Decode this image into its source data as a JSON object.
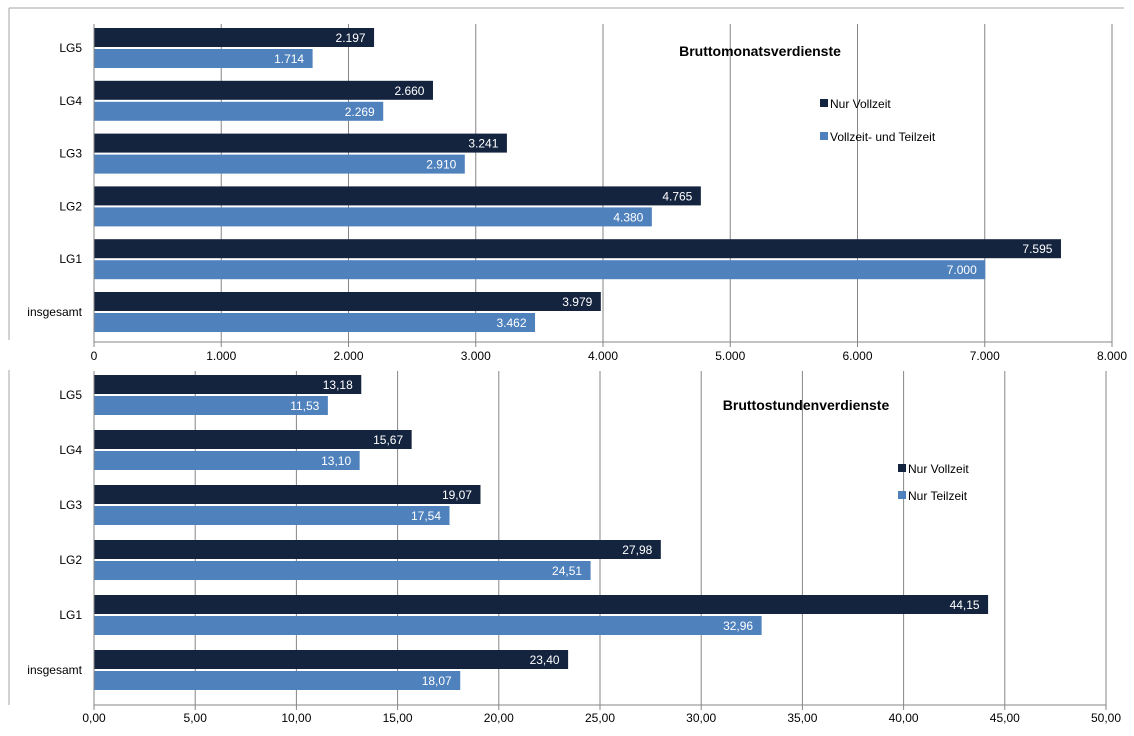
{
  "colors": {
    "vollzeit": "#14243f",
    "zweite": "#4f81bd",
    "grid": "#868686",
    "frame": "#a6a6a6",
    "text": "#000000",
    "label_on_bar": "#ffffff"
  },
  "chart_data": [
    {
      "type": "bar",
      "orientation": "horizontal",
      "title": "Bruttomonatsverdienste",
      "categories": [
        "LG5",
        "LG4",
        "LG3",
        "LG2",
        "LG1",
        "insgesamt"
      ],
      "series": [
        {
          "name": "Nur Vollzeit",
          "values": [
            2197,
            2660,
            3241,
            4765,
            7595,
            3979
          ],
          "labels": [
            "2.197",
            "2.660",
            "3.241",
            "4.765",
            "7.595",
            "3.979"
          ]
        },
        {
          "name": "Vollzeit- und Teilzeit",
          "values": [
            1714,
            2269,
            2910,
            4380,
            7000,
            3462
          ],
          "labels": [
            "1.714",
            "2.269",
            "2.910",
            "4.380",
            "7.000",
            "3.462"
          ]
        }
      ],
      "xlim": [
        0,
        8000
      ],
      "xticks": [
        0,
        1000,
        2000,
        3000,
        4000,
        5000,
        6000,
        7000,
        8000
      ],
      "xtick_labels": [
        "0",
        "1.000",
        "2.000",
        "3.000",
        "4.000",
        "5.000",
        "6.000",
        "7.000",
        "8.000"
      ],
      "grid": true,
      "legend_position": "right"
    },
    {
      "type": "bar",
      "orientation": "horizontal",
      "title": "Bruttostundenverdienste",
      "categories": [
        "LG5",
        "LG4",
        "LG3",
        "LG2",
        "LG1",
        "insgesamt"
      ],
      "series": [
        {
          "name": "Nur Vollzeit",
          "values": [
            13.18,
            15.67,
            19.07,
            27.98,
            44.15,
            23.4
          ],
          "labels": [
            "13,18",
            "15,67",
            "19,07",
            "27,98",
            "44,15",
            "23,40"
          ]
        },
        {
          "name": "Nur Teilzeit",
          "values": [
            11.53,
            13.1,
            17.54,
            24.51,
            32.96,
            18.07
          ],
          "labels": [
            "11,53",
            "13,10",
            "17,54",
            "24,51",
            "32,96",
            "18,07"
          ]
        }
      ],
      "xlim": [
        0,
        50
      ],
      "xticks": [
        0,
        5,
        10,
        15,
        20,
        25,
        30,
        35,
        40,
        45,
        50
      ],
      "xtick_labels": [
        "0,00",
        "5,00",
        "10,00",
        "15,00",
        "20,00",
        "25,00",
        "30,00",
        "35,00",
        "40,00",
        "45,00",
        "50,00"
      ],
      "grid": true,
      "legend_position": "right"
    }
  ]
}
